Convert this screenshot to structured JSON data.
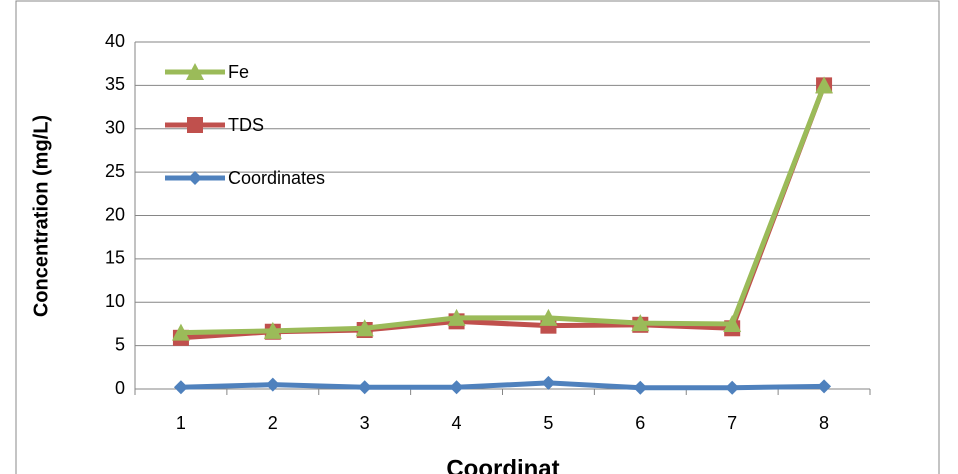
{
  "chart_data": {
    "type": "line",
    "x_label": "Coordinat",
    "y_label": "Concentration (mg/L)",
    "categories": [
      "1",
      "2",
      "3",
      "4",
      "5",
      "6",
      "7",
      "8"
    ],
    "series": [
      {
        "name": "Coordinates",
        "color": "#4f81bd",
        "marker": "diamond",
        "values": [
          0.2,
          0.5,
          0.2,
          0.2,
          0.7,
          0.15,
          0.15,
          0.3
        ]
      },
      {
        "name": "TDS",
        "color": "#c0504d",
        "marker": "square",
        "values": [
          5.9,
          6.6,
          6.8,
          7.8,
          7.3,
          7.4,
          7.0,
          35
        ]
      },
      {
        "name": "Fe",
        "color": "#9bbb59",
        "marker": "triangle",
        "values": [
          6.5,
          6.7,
          7.0,
          8.2,
          8.2,
          7.6,
          7.5,
          35
        ]
      }
    ],
    "ylim": [
      0,
      40
    ],
    "yticks": [
      0,
      5,
      10,
      15,
      20,
      25,
      30,
      35,
      40
    ],
    "grid": true,
    "legend": "upper left"
  }
}
